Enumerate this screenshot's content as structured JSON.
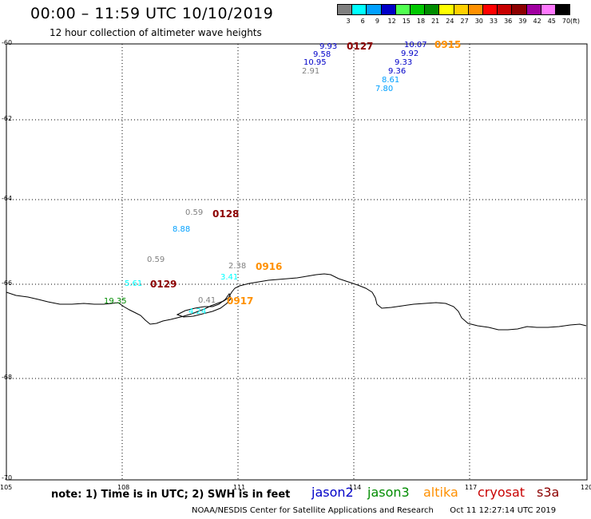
{
  "header": {
    "title": "00:00 – 11:59 UTC 10/10/2019",
    "subtitle": "12 hour collection of altimeter wave heights"
  },
  "color_scale": {
    "bins": [
      {
        "label": "3",
        "color": "#808080"
      },
      {
        "label": "6",
        "color": "#00ffff"
      },
      {
        "label": "9",
        "color": "#00a0ff"
      },
      {
        "label": "12",
        "color": "#0000c8"
      },
      {
        "label": "15",
        "color": "#50ff50"
      },
      {
        "label": "18",
        "color": "#00c800"
      },
      {
        "label": "21",
        "color": "#008c00"
      },
      {
        "label": "24",
        "color": "#ffff00"
      },
      {
        "label": "27",
        "color": "#ffd000"
      },
      {
        "label": "30",
        "color": "#ff9000"
      },
      {
        "label": "33",
        "color": "#ff0000"
      },
      {
        "label": "36",
        "color": "#c80000"
      },
      {
        "label": "39",
        "color": "#8c0000"
      },
      {
        "label": "42",
        "color": "#a000a0"
      },
      {
        "label": "45",
        "color": "#ff78ff"
      },
      {
        "label": "70",
        "color": "#000000"
      }
    ],
    "unit": "(ft)"
  },
  "axes": {
    "lat_labels": [
      "-60",
      "-62",
      "-64",
      "-66",
      "-68",
      "-70"
    ],
    "lon_labels": [
      "105",
      "108",
      "111",
      "114",
      "117",
      "120"
    ]
  },
  "track_times": [
    {
      "text": "0127",
      "color": "#8c0000"
    },
    {
      "text": "0915",
      "color": "#ff9000"
    },
    {
      "text": "0128",
      "color": "#8c0000"
    },
    {
      "text": "0129",
      "color": "#8c0000"
    },
    {
      "text": "0916",
      "color": "#ff9000"
    },
    {
      "text": "0917",
      "color": "#ff9000"
    }
  ],
  "wave_heights": [
    {
      "text": "9.93",
      "color": "#0000c8"
    },
    {
      "text": "9.58",
      "color": "#0000c8"
    },
    {
      "text": "10.95",
      "color": "#0000c8"
    },
    {
      "text": "2.91",
      "color": "#808080"
    },
    {
      "text": "10.07",
      "color": "#0000c8"
    },
    {
      "text": "9.92",
      "color": "#0000c8"
    },
    {
      "text": "9.33",
      "color": "#0000c8"
    },
    {
      "text": "9.36",
      "color": "#0000c8"
    },
    {
      "text": "8.61",
      "color": "#00a0ff"
    },
    {
      "text": "7.80",
      "color": "#00a0ff"
    },
    {
      "text": "0.59",
      "color": "#808080"
    },
    {
      "text": "8.88",
      "color": "#00a0ff"
    },
    {
      "text": "0.59",
      "color": "#808080"
    },
    {
      "text": "5.61",
      "color": "#00ffff"
    },
    {
      "text": "2.38",
      "color": "#808080"
    },
    {
      "text": "3.41",
      "color": "#00ffff"
    },
    {
      "text": "19.35",
      "color": "#008c00"
    },
    {
      "text": "0.41",
      "color": "#808080"
    },
    {
      "text": "4.24",
      "color": "#00ffff"
    }
  ],
  "footer": {
    "note": "note: 1) Time is in UTC; 2) SWH is in feet",
    "satellites": [
      {
        "name": "jason2",
        "color": "#0000c8"
      },
      {
        "name": "jason3",
        "color": "#008c00"
      },
      {
        "name": "altika",
        "color": "#ff9000"
      },
      {
        "name": "cryosat",
        "color": "#c80000"
      },
      {
        "name": "s3a",
        "color": "#8c0000"
      }
    ],
    "credit": "NOAA/NESDIS Center for Satellite Applications and Research",
    "timestamp": "Oct 11 12:27:14 UTC 2019"
  }
}
